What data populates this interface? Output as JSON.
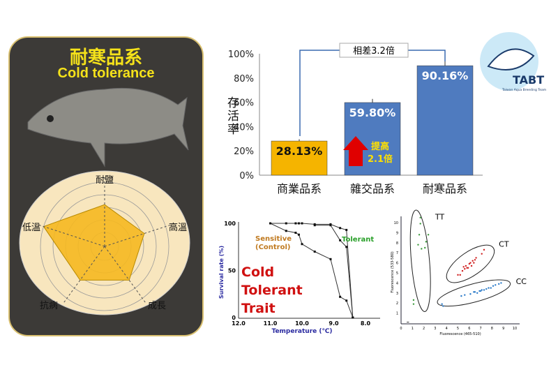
{
  "left_panel": {
    "title_zh": "耐寒品系",
    "title_en": "Cold tolerance",
    "radar": {
      "axes": [
        "耐鹽",
        "高溫",
        "成長",
        "抗病",
        "低溫"
      ],
      "values": [
        0.65,
        0.65,
        0.65,
        0.65,
        1.0
      ],
      "fill": "#f5b820"
    }
  },
  "chart_data": [
    {
      "type": "bar",
      "categories": [
        "商業品系",
        "雜交品系",
        "耐寒品系"
      ],
      "values": [
        28.13,
        59.8,
        90.16
      ],
      "data_labels": [
        "28.13%",
        "59.80%",
        "90.16%"
      ],
      "errors": [
        1.5,
        3,
        4
      ],
      "colors": [
        "#f5b400",
        "#4f7bbf",
        "#4f7bbf"
      ],
      "ylabel": "存活率",
      "yticks": [
        "0%",
        "20%",
        "40%",
        "60%",
        "80%",
        "100%"
      ],
      "ylim": [
        0,
        100
      ],
      "annotations": {
        "bracket": "相差3.2倍",
        "arrow": "提高",
        "arrow2": "2.1倍"
      }
    },
    {
      "type": "line",
      "xlabel": "Temperature (℃)",
      "ylabel": "Survival rate (%)",
      "xlim": [
        12,
        8
      ],
      "ylim": [
        0,
        100
      ],
      "xticks": [
        "12.0",
        "11.0",
        "10.0",
        "9.0",
        "8.0"
      ],
      "yticks": [
        "0",
        "50",
        "100"
      ],
      "series": [
        {
          "name": "Sensitive (Control)",
          "x": [
            11,
            10.5,
            10.2,
            10.1,
            10,
            9.6,
            9.1,
            8.8,
            8.6,
            8.4
          ],
          "y": [
            100,
            92,
            90,
            88,
            78,
            70,
            62,
            22,
            18,
            0
          ]
        },
        {
          "name": "Tolerant",
          "x": [
            11,
            10.5,
            10.2,
            10.1,
            10,
            9.6,
            9.1,
            8.8,
            8.6,
            8.4
          ],
          "y": [
            100,
            100,
            100,
            100,
            100,
            99,
            99,
            95,
            93,
            0
          ]
        },
        {
          "name": "",
          "x": [
            9.6,
            9.1,
            8.8,
            8.6,
            8.4
          ],
          "y": [
            98,
            98,
            82,
            75,
            0
          ]
        }
      ],
      "labels": {
        "sensitive": "Sensitive\n(Control)",
        "sensitive1": "Sensitive",
        "sensitive2": "(Control)",
        "tolerant": "Tolerant",
        "trait": [
          "Cold",
          "Tolerant",
          "Trait"
        ]
      }
    },
    {
      "type": "scatter",
      "xlabel": "Fluorescence (465-510)",
      "ylabel": "Fluorescence (533-580)",
      "xlim": [
        0,
        10
      ],
      "ylim": [
        0,
        10
      ],
      "xticks": [
        "0",
        "1",
        "2",
        "3",
        "4",
        "5",
        "6",
        "7",
        "8",
        "9",
        "10"
      ],
      "yticks": [
        "1",
        "2",
        "3",
        "4",
        "5",
        "6",
        "7",
        "8",
        "9",
        "10"
      ],
      "groups": [
        {
          "name": "TT",
          "color": "#3a9a3a",
          "x": [
            1.7,
            1.7,
            1.6,
            1.5,
            2.2,
            2.4,
            1.8,
            2.1,
            1.1,
            1.1
          ],
          "y": [
            10.5,
            9.9,
            8.8,
            7.8,
            8.1,
            8.8,
            7.4,
            7.5,
            2.3,
            1.9
          ]
        },
        {
          "name": "CT",
          "color": "#d02020",
          "x": [
            5.0,
            5.2,
            5.4,
            5.6,
            5.7,
            5.9,
            6.0,
            6.1,
            6.2,
            6.3,
            6.4,
            6.5,
            6.6,
            7.1,
            7.3,
            5.5,
            5.8
          ],
          "y": [
            4.8,
            4.8,
            5.2,
            5.4,
            5.7,
            5.5,
            5.9,
            6.0,
            5.7,
            6.2,
            6.0,
            6.3,
            6.5,
            6.9,
            7.3,
            5.6,
            5.5
          ]
        },
        {
          "name": "CC",
          "color": "#2a7ac8",
          "x": [
            3.6,
            3.7,
            5.3,
            5.6,
            6.1,
            6.4,
            6.7,
            6.9,
            7.1,
            7.3,
            7.5,
            7.7,
            7.9,
            8.1,
            8.3,
            8.6,
            8.8,
            6.5,
            7.0
          ],
          "y": [
            1.9,
            1.7,
            2.7,
            2.8,
            2.9,
            3.1,
            3.0,
            3.2,
            3.3,
            3.3,
            3.4,
            3.5,
            3.5,
            3.7,
            3.8,
            3.9,
            4.0,
            3.1,
            3.2
          ]
        }
      ],
      "outlier": {
        "x": 0.6,
        "y": 0.1
      }
    }
  ],
  "logo": {
    "text": "TABT",
    "subtext": "Taiwan Aqua Breeding Team"
  }
}
